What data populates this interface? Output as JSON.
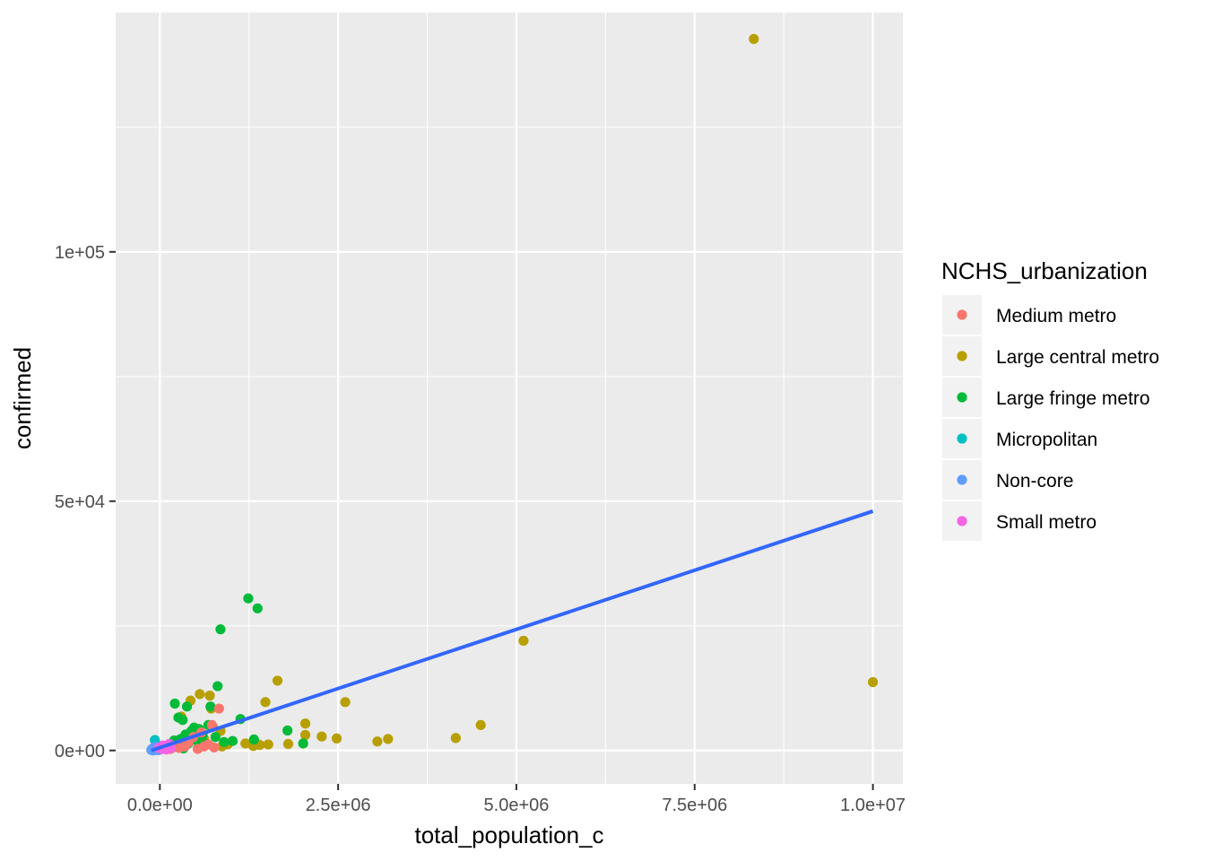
{
  "chart_data": {
    "type": "scatter",
    "xlabel": "total_population_c",
    "ylabel": "confirmed",
    "x_ticks": [
      {
        "value": 0,
        "label": "0.0e+00"
      },
      {
        "value": 2500000,
        "label": "2.5e+06"
      },
      {
        "value": 5000000,
        "label": "5.0e+06"
      },
      {
        "value": 7500000,
        "label": "7.5e+06"
      },
      {
        "value": 10000000,
        "label": "1.0e+07"
      }
    ],
    "y_ticks": [
      {
        "value": 0,
        "label": "0e+00"
      },
      {
        "value": 50000,
        "label": "5e+04"
      },
      {
        "value": 100000,
        "label": "1e+05"
      }
    ],
    "xlim": [
      -620000,
      10420000
    ],
    "ylim": [
      -6700,
      148000
    ],
    "grid": true,
    "legend": {
      "title": "NCHS_urbanization",
      "position": "right",
      "entries": [
        {
          "name": "Medium metro",
          "color": "#F8766D"
        },
        {
          "name": "Large central metro",
          "color": "#B79F00"
        },
        {
          "name": "Large fringe metro",
          "color": "#00BA38"
        },
        {
          "name": "Micropolitan",
          "color": "#00BFC4"
        },
        {
          "name": "Non-core",
          "color": "#619CFF"
        },
        {
          "name": "Small metro",
          "color": "#F564E3"
        }
      ]
    },
    "trend_line": {
      "color": "#3366FF",
      "points": [
        [
          -120000,
          0
        ],
        [
          10000000,
          48000
        ]
      ]
    },
    "series": [
      {
        "name": "Large central metro",
        "color": "#B79F00",
        "points": [
          [
            8330000,
            142700
          ],
          [
            10000000,
            13700
          ],
          [
            5100000,
            22000
          ],
          [
            4500000,
            5100
          ],
          [
            4150000,
            2500
          ],
          [
            3200000,
            2300
          ],
          [
            3050000,
            1800
          ],
          [
            2600000,
            9700
          ],
          [
            2480000,
            2400
          ],
          [
            2270000,
            2800
          ],
          [
            2040000,
            5400
          ],
          [
            2040000,
            3100
          ],
          [
            1650000,
            14000
          ],
          [
            1480000,
            9700
          ],
          [
            1520000,
            1200
          ],
          [
            1800000,
            1300
          ],
          [
            1400000,
            1100
          ],
          [
            1310000,
            900
          ],
          [
            1200000,
            1400
          ],
          [
            950000,
            1200
          ],
          [
            870000,
            800
          ],
          [
            700000,
            11000
          ],
          [
            560000,
            11300
          ],
          [
            430000,
            10000
          ],
          [
            720000,
            8400
          ],
          [
            300000,
            6800
          ],
          [
            850000,
            3900
          ],
          [
            620000,
            2300
          ]
        ]
      },
      {
        "name": "Large fringe metro",
        "color": "#00BA38",
        "points": [
          [
            1240000,
            30500
          ],
          [
            1370000,
            28500
          ],
          [
            850000,
            24300
          ],
          [
            810000,
            12900
          ],
          [
            210000,
            9400
          ],
          [
            380000,
            8800
          ],
          [
            710000,
            8800
          ],
          [
            1130000,
            6300
          ],
          [
            260000,
            6600
          ],
          [
            320000,
            6100
          ],
          [
            480000,
            4600
          ],
          [
            550000,
            4300
          ],
          [
            680000,
            5100
          ],
          [
            740000,
            4800
          ],
          [
            1790000,
            4000
          ],
          [
            1320000,
            2200
          ],
          [
            1020000,
            1900
          ],
          [
            2010000,
            1400
          ],
          [
            360000,
            3200
          ],
          [
            440000,
            3900
          ],
          [
            600000,
            3100
          ],
          [
            780000,
            2700
          ],
          [
            900000,
            1700
          ],
          [
            290000,
            2300
          ],
          [
            200000,
            2000
          ],
          [
            170000,
            1200
          ],
          [
            240000,
            700
          ],
          [
            400000,
            1400
          ],
          [
            520000,
            1900
          ],
          [
            650000,
            1300
          ],
          [
            120000,
            600
          ],
          [
            330000,
            400
          ]
        ]
      },
      {
        "name": "Medium metro",
        "color": "#F8766D",
        "points": [
          [
            830000,
            8400
          ],
          [
            730000,
            5100
          ],
          [
            580000,
            3600
          ],
          [
            470000,
            2700
          ],
          [
            400000,
            1600
          ],
          [
            680000,
            1200
          ],
          [
            350000,
            800
          ],
          [
            270000,
            500
          ],
          [
            530000,
            300
          ],
          [
            760000,
            600
          ],
          [
            210000,
            900
          ],
          [
            150000,
            300
          ],
          [
            620000,
            800
          ]
        ]
      },
      {
        "name": "Micropolitan",
        "color": "#00BFC4",
        "points": [
          [
            -70000,
            2100
          ],
          [
            -20000,
            800
          ],
          [
            30000,
            400
          ],
          [
            -90000,
            200
          ],
          [
            60000,
            600
          ],
          [
            -50000,
            1200
          ]
        ]
      },
      {
        "name": "Non-core",
        "color": "#619CFF",
        "points": [
          [
            -120000,
            100
          ],
          [
            -110000,
            300
          ],
          [
            -100000,
            0
          ],
          [
            -90000,
            500
          ],
          [
            -80000,
            200
          ],
          [
            -60000,
            100
          ],
          [
            -40000,
            300
          ],
          [
            -20000,
            50
          ],
          [
            0,
            150
          ],
          [
            -70000,
            700
          ]
        ]
      },
      {
        "name": "Small metro",
        "color": "#F564E3",
        "points": [
          [
            40000,
            1000
          ],
          [
            80000,
            800
          ],
          [
            110000,
            600
          ],
          [
            60000,
            400
          ],
          [
            20000,
            300
          ],
          [
            130000,
            1300
          ],
          [
            90000,
            200
          ],
          [
            150000,
            500
          ],
          [
            -10000,
            600
          ]
        ]
      }
    ]
  }
}
